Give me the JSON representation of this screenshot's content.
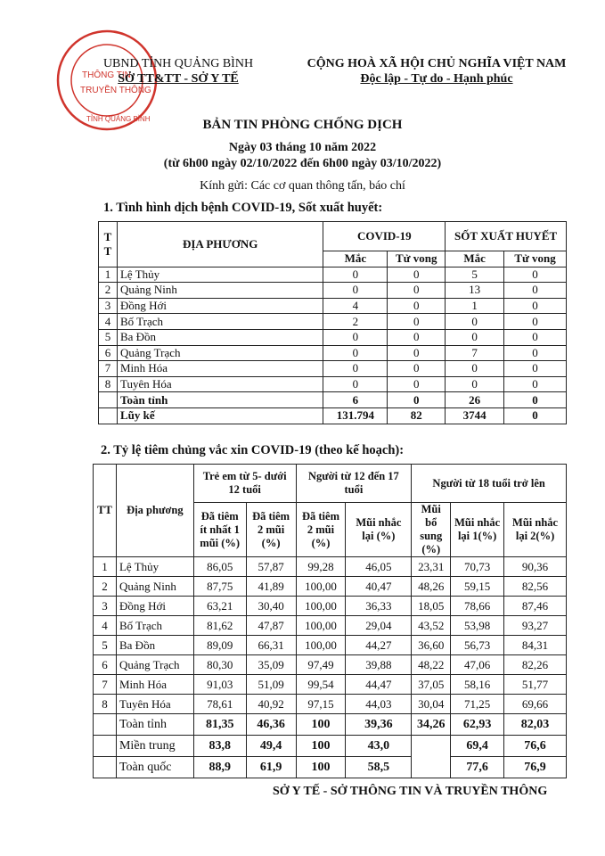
{
  "header": {
    "left_line1": "UBND TỈNH QUẢNG BÌNH",
    "left_line2": "SỞ TT&TT - SỞ Y TẾ",
    "right_line1": "CỘNG HOÀ XÃ HỘI CHỦ NGHĨA VIỆT NAM",
    "right_line2": "Độc lập - Tự do - Hạnh phúc"
  },
  "stamp": {
    "outer": "CỘNG HOÀ XÃ HỘI CHỦ NGHĨA VIỆT NAM",
    "inner": "THÔNG TIN VÀ TRUYỀN THÔNG",
    "bottom": "TỈNH QUẢNG BÌNH",
    "color": "#d0342c"
  },
  "title": "BẢN TIN PHÒNG CHỐNG DỊCH",
  "date": "Ngày 03 tháng 10 năm 2022",
  "range": "(từ 6h00 ngày 02/10/2022 đến 6h00 ngày 03/10/2022)",
  "recipient": "Kính gửi: Các cơ quan thông tấn, báo chí",
  "section1": {
    "heading": "1. Tình hình dịch bệnh COVID-19, Sốt xuất huyết:",
    "headers": {
      "tt": "T T",
      "place": "ĐỊA PHƯƠNG",
      "covid": "COVID-19",
      "sxh": "SỐT XUẤT HUYẾT",
      "cases": "Mắc",
      "deaths": "Tử vong"
    },
    "rows": [
      [
        "1",
        "Lệ Thủy",
        "0",
        "0",
        "5",
        "0"
      ],
      [
        "2",
        "Quảng Ninh",
        "0",
        "0",
        "13",
        "0"
      ],
      [
        "3",
        "Đồng Hới",
        "4",
        "0",
        "1",
        "0"
      ],
      [
        "4",
        "Bố Trạch",
        "2",
        "0",
        "0",
        "0"
      ],
      [
        "5",
        "Ba Đồn",
        "0",
        "0",
        "0",
        "0"
      ],
      [
        "6",
        "Quảng Trạch",
        "0",
        "0",
        "7",
        "0"
      ],
      [
        "7",
        "Minh Hóa",
        "0",
        "0",
        "0",
        "0"
      ],
      [
        "8",
        "Tuyên Hóa",
        "0",
        "0",
        "0",
        "0"
      ]
    ],
    "totals": [
      [
        "",
        "Toàn tỉnh",
        "6",
        "0",
        "26",
        "0"
      ],
      [
        "",
        "Lũy kế",
        "131.794",
        "82",
        "3744",
        "0"
      ]
    ]
  },
  "section2": {
    "heading": "2. Tỷ lệ tiêm chủng vắc xin COVID-19 (theo kế hoạch):",
    "headers": {
      "tt": "TT",
      "place": "Địa phương",
      "g1": "Trẻ em từ 5- dưới 12 tuổi",
      "g2": "Người từ 12 đến 17 tuổi",
      "g3": "Người từ 18 tuổi trở lên",
      "c1": "Đã tiêm ít nhất 1 mũi (%)",
      "c2": "Đã tiêm 2 mũi (%)",
      "c3": "Đã tiêm 2 mũi (%)",
      "c4": "Mũi nhắc lại (%)",
      "c5": "Mũi bổ sung (%)",
      "c6": "Mũi nhắc lại 1(%)",
      "c7": "Mũi nhắc lại 2(%)"
    },
    "rows": [
      [
        "1",
        "Lệ Thủy",
        "86,05",
        "57,87",
        "99,28",
        "46,05",
        "23,31",
        "70,73",
        "90,36"
      ],
      [
        "2",
        "Quảng Ninh",
        "87,75",
        "41,89",
        "100,00",
        "40,47",
        "48,26",
        "59,15",
        "82,56"
      ],
      [
        "3",
        "Đồng Hới",
        "63,21",
        "30,40",
        "100,00",
        "36,33",
        "18,05",
        "78,66",
        "87,46"
      ],
      [
        "4",
        "Bố Trạch",
        "81,62",
        "47,87",
        "100,00",
        "29,04",
        "43,52",
        "53,98",
        "93,27"
      ],
      [
        "5",
        "Ba Đồn",
        "89,09",
        "66,31",
        "100,00",
        "44,27",
        "36,60",
        "56,73",
        "84,31"
      ],
      [
        "6",
        "Quảng Trạch",
        "80,30",
        "35,09",
        "97,49",
        "39,88",
        "48,22",
        "47,06",
        "82,26"
      ],
      [
        "7",
        "Minh Hóa",
        "91,03",
        "51,09",
        "99,54",
        "44,47",
        "37,05",
        "58,16",
        "51,77"
      ],
      [
        "8",
        "Tuyên Hóa",
        "78,61",
        "40,92",
        "97,15",
        "44,03",
        "30,04",
        "71,25",
        "69,66"
      ]
    ],
    "province": [
      "",
      "Toàn tỉnh",
      "81,35",
      "46,36",
      "100",
      "39,36",
      "34,26",
      "62,93",
      "82,03"
    ],
    "central": [
      "",
      "Miền trung",
      "83,8",
      "49,4",
      "100",
      "43,0",
      "69,4",
      "76,6"
    ],
    "national": [
      "",
      "Toàn quốc",
      "88,9",
      "61,9",
      "100",
      "58,5",
      "77,6",
      "76,9"
    ]
  },
  "footer": "SỞ Y TẾ -  SỞ THÔNG TIN VÀ TRUYỀN THÔNG"
}
